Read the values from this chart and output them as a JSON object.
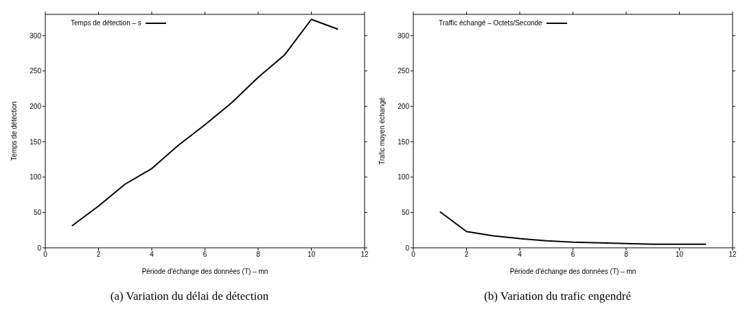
{
  "chart_data": [
    {
      "type": "line",
      "title": "(a)  Variation du délai de détection",
      "xlabel": "Période d'échange des données (T) – mn",
      "ylabel": "Temps de détection",
      "x": [
        1,
        2,
        3,
        4,
        5,
        6,
        7,
        8,
        9,
        10,
        11
      ],
      "series": [
        {
          "name": "Temps de détection – s",
          "color": "#000000",
          "values": [
            31,
            59,
            90,
            112,
            145,
            174,
            205,
            241,
            273,
            323,
            309
          ]
        }
      ],
      "xlim": [
        0,
        12
      ],
      "xticks": [
        0,
        2,
        4,
        6,
        8,
        10,
        12
      ],
      "ylim": [
        0,
        330
      ],
      "yticks": [
        0,
        50,
        100,
        150,
        200,
        250,
        300
      ],
      "legend": "top left"
    },
    {
      "type": "line",
      "title": "(b)  Variation du trafic engendré",
      "xlabel": "Période d'échange des données (T) – mn",
      "ylabel": "Trafic moyen échangé",
      "x": [
        1,
        2,
        3,
        4,
        5,
        6,
        7,
        8,
        9,
        10,
        11
      ],
      "series": [
        {
          "name": "Traffic échangé – Octets/Seconde",
          "color": "#000000",
          "values": [
            51,
            23,
            17,
            13,
            10,
            8,
            7,
            6,
            5,
            5,
            5
          ]
        }
      ],
      "xlim": [
        0,
        12
      ],
      "xticks": [
        0,
        2,
        4,
        6,
        8,
        10,
        12
      ],
      "ylim": [
        0,
        330
      ],
      "yticks": [
        0,
        50,
        100,
        150,
        200,
        250,
        300
      ],
      "legend": "top left"
    }
  ]
}
